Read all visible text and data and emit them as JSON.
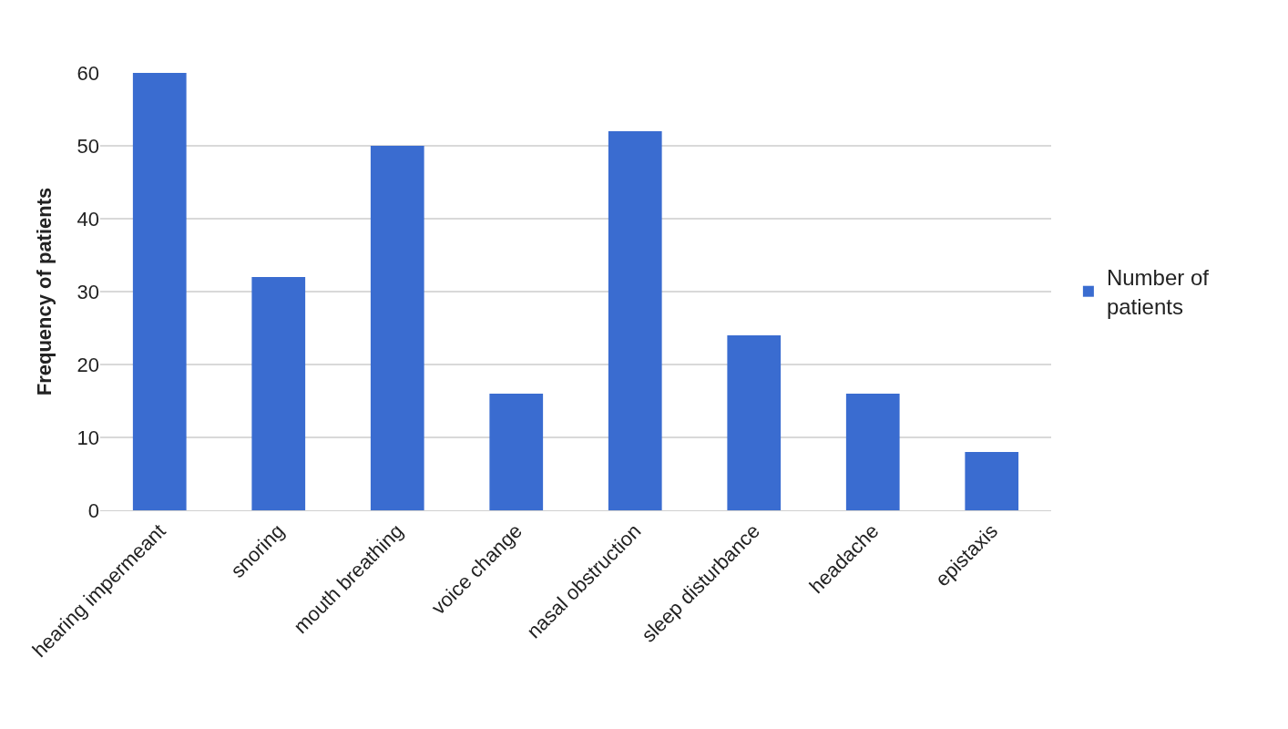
{
  "chart_data": {
    "type": "bar",
    "ylabel": "Frequency of patients",
    "categories": [
      "hearing impermeant",
      "snoring",
      "mouth breathing",
      "voice change",
      "nasal obstruction",
      "sleep disturbance",
      "headache",
      "epistaxis"
    ],
    "series": [
      {
        "name": "Number of\npatients",
        "color": "#3a6cd0",
        "values": [
          60,
          32,
          50,
          16,
          52,
          24,
          16,
          8
        ]
      }
    ],
    "ylim": [
      0,
      60
    ],
    "yticks": [
      0,
      10,
      20,
      30,
      40,
      50,
      60
    ],
    "grid": "y",
    "legend": "right"
  }
}
